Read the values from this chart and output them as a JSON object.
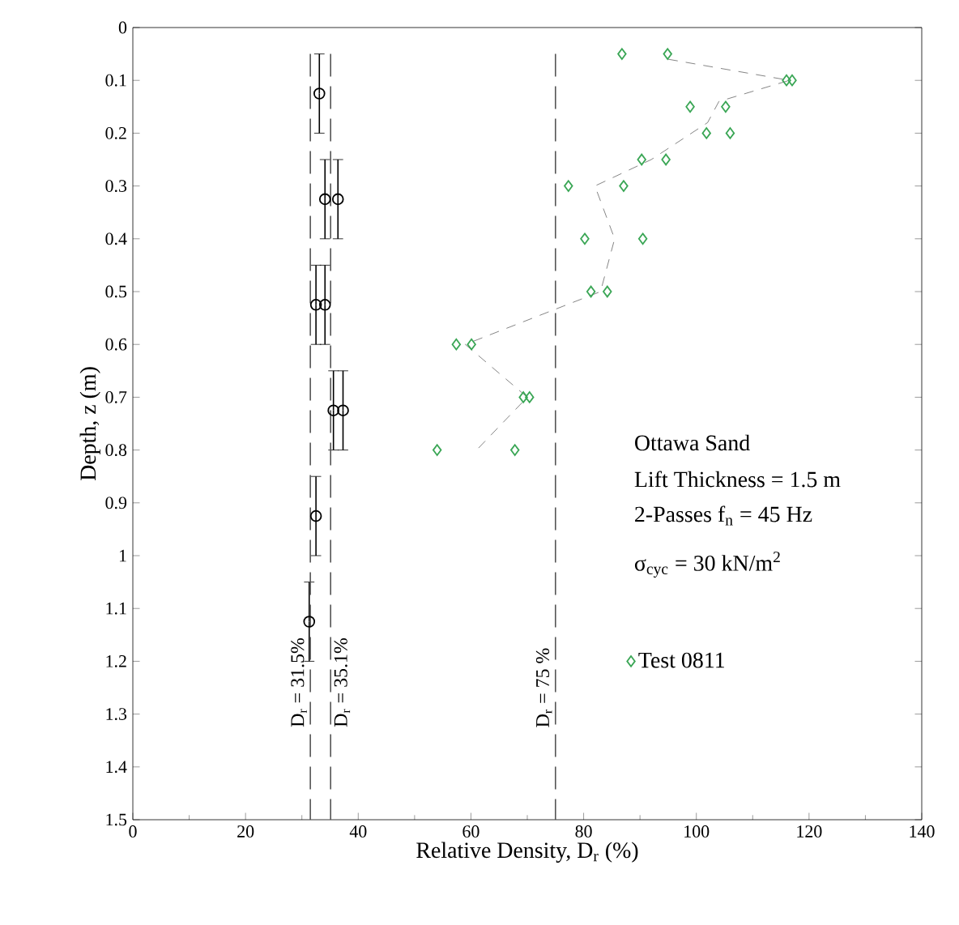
{
  "chart_data": {
    "type": "scatter",
    "xlabel": "Relative Density, D$_{r}$ (%)",
    "ylabel": "Depth, z (m)",
    "xlim": [
      0,
      140
    ],
    "xticks": [
      0,
      20,
      40,
      60,
      80,
      100,
      120,
      140
    ],
    "ylim": [
      1.5,
      0
    ],
    "yticks": [
      0,
      0.1,
      0.2,
      0.3,
      0.4,
      0.5,
      0.6,
      0.7,
      0.8,
      0.9,
      1,
      1.1,
      1.2,
      1.3,
      1.4,
      1.5
    ],
    "grid": false,
    "legend": "right",
    "series": [
      {
        "type": "line",
        "color": "#666666",
        "line_style": "dashed",
        "marker": "none",
        "x": [
          95,
          116.5,
          104,
          102,
          92,
          82,
          85.5,
          83,
          59,
          70,
          61
        ],
        "values": [
          0.06,
          0.1,
          0.14,
          0.18,
          0.25,
          0.3,
          0.4,
          0.5,
          0.6,
          0.7,
          0.8
        ]
      },
      {
        "type": "scatter",
        "name": "Test 0811",
        "color": "#3aa655",
        "marker": "diamond",
        "x": [
          86.8,
          94.9,
          116,
          117,
          98.9,
          105.2,
          101.8,
          106,
          90.3,
          94.6,
          77.3,
          87.1,
          80.2,
          90.5,
          81.3,
          84.2,
          57.4,
          60.1,
          69.3,
          70.4,
          54,
          67.8
        ],
        "values": [
          0.05,
          0.05,
          0.1,
          0.1,
          0.15,
          0.15,
          0.2,
          0.2,
          0.25,
          0.25,
          0.3,
          0.3,
          0.4,
          0.4,
          0.5,
          0.5,
          0.6,
          0.6,
          0.7,
          0.7,
          0.8,
          0.8
        ]
      },
      {
        "type": "scatter",
        "color": "#000000",
        "marker": "circle",
        "x": [
          33.1,
          34.1,
          36.4,
          32.5,
          34.1,
          35.6,
          37.3,
          32.5,
          31.3
        ],
        "values": [
          0.125,
          0.325,
          0.325,
          0.525,
          0.525,
          0.725,
          0.725,
          0.925,
          1.125
        ],
        "errors": [
          0.075,
          0.075,
          0.075,
          0.075,
          0.075,
          0.075,
          0.075,
          0.075,
          0.075
        ]
      }
    ],
    "ref_lines": [
      {
        "axis": "x",
        "value": 31.5,
        "label": "D$_{r}$ = 31.5%",
        "color": "#555555",
        "line_style": "dashed"
      },
      {
        "axis": "x",
        "value": 35.1,
        "label": "D$_{r}$ = 35.1%",
        "color": "#555555",
        "line_style": "dashed"
      },
      {
        "axis": "x",
        "value": 75,
        "label": "D$_{r}$ = 75 %",
        "color": "#555555",
        "line_style": "dashed"
      }
    ],
    "annotations": [
      "Ottawa Sand",
      "Lift Thickness = 1.5 m",
      "2-Passes  f$_{n}$ = 45 Hz",
      "σ$_{cyc}$ = 30 kN/m$^{2}$"
    ]
  }
}
